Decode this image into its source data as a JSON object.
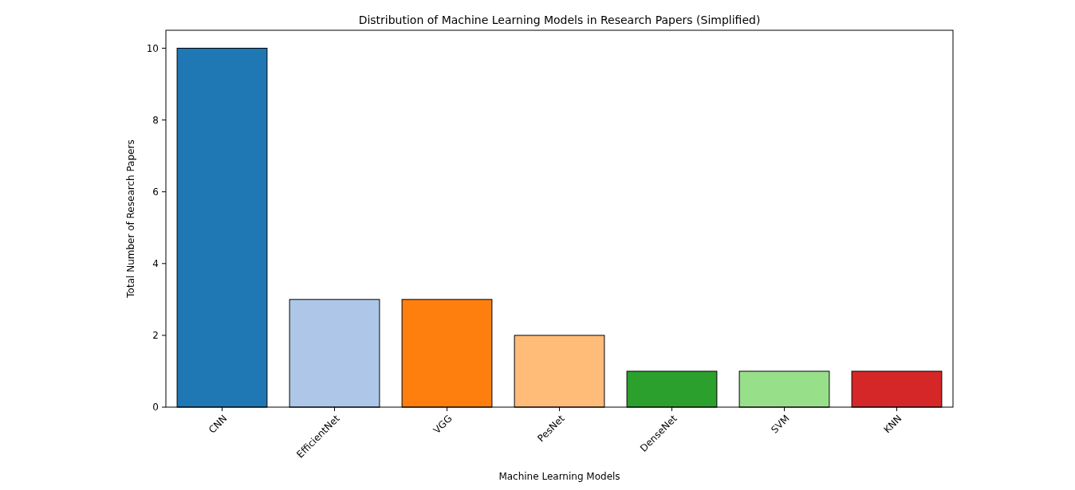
{
  "chart_data": {
    "type": "bar",
    "title": "Distribution of Machine Learning Models in Research Papers (Simplified)",
    "xlabel": "Machine Learning Models",
    "ylabel": "Total Number of Research Papers",
    "categories": [
      "CNN",
      "EfficientNet",
      "VGG",
      "PesNet",
      "DenseNet",
      "SVM",
      "KNN"
    ],
    "values": [
      10,
      3,
      3,
      2,
      1,
      1,
      1
    ],
    "colors": [
      "#1f77b4",
      "#aec7e8",
      "#ff7f0e",
      "#ffbb78",
      "#2ca02c",
      "#98df8a",
      "#d62728"
    ],
    "ylim": [
      0,
      10.5
    ],
    "yticks": [
      0,
      2,
      4,
      6,
      8,
      10
    ]
  }
}
